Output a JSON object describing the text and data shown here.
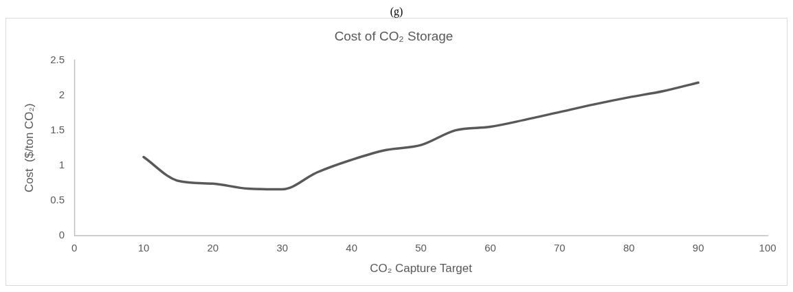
{
  "chart_data": {
    "type": "line",
    "title": "Cost of CO₂ Storage",
    "xlabel": "CO₂ Capture Target",
    "ylabel": "Cost  ($/ton CO₂)",
    "annotations": [
      "(g)"
    ],
    "x": [
      10,
      15,
      20,
      25,
      30,
      35,
      40,
      45,
      50,
      55,
      60,
      65,
      70,
      75,
      80,
      85,
      90
    ],
    "series": [
      {
        "color": "#595959",
        "values": [
          1.12,
          0.78,
          0.74,
          0.67,
          0.66,
          0.9,
          1.08,
          1.22,
          1.29,
          1.5,
          1.55,
          1.65,
          1.76,
          1.87,
          1.97,
          2.06,
          2.18
        ]
      }
    ],
    "xlim": [
      0,
      100
    ],
    "xticks": [
      0,
      10,
      20,
      30,
      40,
      50,
      60,
      70,
      80,
      90,
      100
    ],
    "ylim": [
      0,
      2.5
    ],
    "yticks": [
      0,
      0.5,
      1,
      1.5,
      2,
      2.5
    ],
    "grid": false,
    "legend": false,
    "marker": "none",
    "line_style": "solid"
  }
}
